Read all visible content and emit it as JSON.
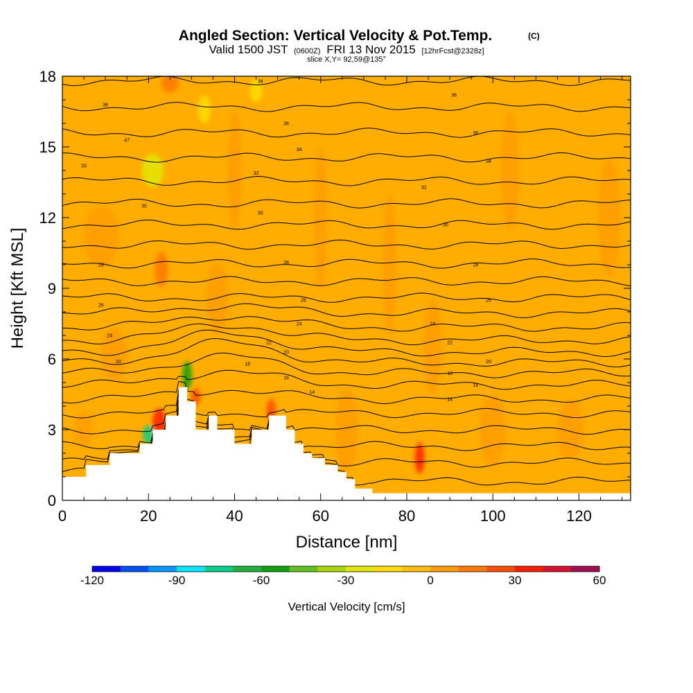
{
  "chart_data": {
    "type": "heatmap",
    "title": "Angled Section: Vertical Velocity & Pot.Temp.",
    "title_units": "(C)",
    "subtitle": {
      "valid": "Valid 1500 JST",
      "zulu": "(0600Z)",
      "date": "FRI 13 Nov 2015",
      "forecast": "[12hrFcst@2328z]"
    },
    "slice_label": "slice X,Y= 92,59@135°",
    "xlabel": "Distance [nm]",
    "ylabel": "Height [Kft MSL]",
    "xlim": [
      0,
      132
    ],
    "ylim": [
      0,
      18
    ],
    "x_ticks": [
      "0",
      "20",
      "40",
      "60",
      "80",
      "100",
      "120"
    ],
    "y_ticks": [
      "0",
      "3",
      "6",
      "9",
      "12",
      "15",
      "18"
    ],
    "colorbar": {
      "label": "Vertical Velocity [cm/s]",
      "min": -120,
      "max": 60,
      "step": 10,
      "tick_labels": [
        "-120",
        "-90",
        "-60",
        "-30",
        "0",
        "30",
        "60"
      ],
      "colors": [
        "#0000ee",
        "#0050ff",
        "#0096ff",
        "#00e8ff",
        "#00d08a",
        "#20b040",
        "#10a010",
        "#60c020",
        "#a8d800",
        "#e0e800",
        "#ffdc00",
        "#ffbe00",
        "#ff9c00",
        "#ff7800",
        "#ff4e00",
        "#ff1c00",
        "#d81030",
        "#a01050"
      ]
    },
    "background_level_color": "#ffad00",
    "terrain": {
      "color": "#ffffff",
      "x": [
        0,
        5.5,
        5.5,
        11,
        11,
        18,
        18,
        21,
        21,
        24,
        24,
        27,
        27,
        29,
        29,
        31,
        31,
        34,
        34,
        36,
        36,
        40,
        40,
        44,
        44,
        48,
        48,
        50,
        50,
        52,
        52,
        54,
        54,
        56,
        56,
        58,
        58,
        61,
        61,
        64,
        64,
        66,
        66,
        68,
        68,
        72,
        72,
        80,
        80,
        132
      ],
      "height_kft": [
        1.0,
        1.0,
        1.5,
        1.5,
        2.0,
        2.0,
        2.4,
        2.4,
        3.0,
        3.0,
        3.6,
        3.6,
        4.8,
        4.8,
        4.2,
        4.2,
        3.0,
        3.0,
        3.6,
        3.6,
        3.0,
        3.0,
        2.4,
        2.4,
        3.0,
        3.0,
        3.6,
        3.6,
        3.6,
        3.6,
        3.0,
        3.0,
        2.4,
        2.4,
        2.0,
        2.0,
        1.8,
        1.8,
        1.5,
        1.5,
        1.2,
        1.2,
        0.9,
        0.9,
        0.5,
        0.5,
        0.3,
        0.3,
        0.3,
        0.3
      ]
    },
    "velocity_features": [
      {
        "x": 22.5,
        "y": 3.2,
        "w": 3.2,
        "h": 1.4,
        "value": 35
      },
      {
        "x": 83,
        "y": 1.8,
        "w": 2.2,
        "h": 1.3,
        "value": 30
      },
      {
        "x": 48.5,
        "y": 3.8,
        "w": 2.2,
        "h": 1.0,
        "value": 25
      },
      {
        "x": 23,
        "y": 9.8,
        "w": 3,
        "h": 1.5,
        "value": 15
      },
      {
        "x": 25,
        "y": 17.7,
        "w": 4,
        "h": 0.8,
        "value": 15
      },
      {
        "x": 31,
        "y": 4.4,
        "w": 2.2,
        "h": 0.7,
        "value": 20
      },
      {
        "x": 29,
        "y": 5.3,
        "w": 2.2,
        "h": 1.2,
        "value": -60
      },
      {
        "x": 20,
        "y": 2.8,
        "w": 2.6,
        "h": 0.8,
        "value": -80
      },
      {
        "x": 21,
        "y": 14.0,
        "w": 5,
        "h": 1.4,
        "value": -25
      },
      {
        "x": 33,
        "y": 16.6,
        "w": 3,
        "h": 1.2,
        "value": -15
      },
      {
        "x": 45,
        "y": 17.4,
        "w": 3,
        "h": 1.0,
        "value": -15
      },
      {
        "x": 9,
        "y": 11.2,
        "w": 8,
        "h": 2.6,
        "value": 8
      },
      {
        "x": 12,
        "y": 6.2,
        "w": 6,
        "h": 2.2,
        "value": 8
      },
      {
        "x": 36,
        "y": 8.6,
        "w": 5,
        "h": 3.0,
        "value": 8
      },
      {
        "x": 66,
        "y": 3.0,
        "w": 5,
        "h": 3.5,
        "value": 8
      },
      {
        "x": 86,
        "y": 6.5,
        "w": 4,
        "h": 4.0,
        "value": 8
      },
      {
        "x": 100,
        "y": 3.0,
        "w": 6,
        "h": 3.0,
        "value": 8
      },
      {
        "x": 118,
        "y": 3.0,
        "w": 6,
        "h": 2.5,
        "value": 8
      },
      {
        "x": 104,
        "y": 14.0,
        "w": 4,
        "h": 5.0,
        "value": 8
      },
      {
        "x": 127,
        "y": 12.0,
        "w": 5,
        "h": 5.0,
        "value": 8
      },
      {
        "x": 60,
        "y": 12.0,
        "w": 3,
        "h": 6.0,
        "value": 8
      },
      {
        "x": 76,
        "y": 10.0,
        "w": 3,
        "h": 6.0,
        "value": 8
      },
      {
        "x": 5,
        "y": 3.0,
        "w": 4,
        "h": 1.5,
        "value": 8
      },
      {
        "x": 40,
        "y": 14.0,
        "w": 3,
        "h": 5.0,
        "value": 8
      }
    ],
    "isentrope_base_heights_kft": [
      0.8,
      1.6,
      2.3,
      3.0,
      3.7,
      4.3,
      4.9,
      5.4,
      5.85,
      6.3,
      6.8,
      7.35,
      7.95,
      8.6,
      9.3,
      10.05,
      10.85,
      11.7,
      12.6,
      13.55,
      14.55,
      15.6,
      16.7,
      17.8
    ],
    "isentrope_labels": [
      {
        "x": 58,
        "y": 4.6,
        "text": "14"
      },
      {
        "x": 90,
        "y": 4.3,
        "text": "14"
      },
      {
        "x": 52,
        "y": 5.2,
        "text": "16"
      },
      {
        "x": 96,
        "y": 4.9,
        "text": "16"
      },
      {
        "x": 43,
        "y": 5.8,
        "text": "18"
      },
      {
        "x": 90,
        "y": 5.4,
        "text": "18"
      },
      {
        "x": 13,
        "y": 5.9,
        "text": "20"
      },
      {
        "x": 52,
        "y": 6.3,
        "text": "20"
      },
      {
        "x": 99,
        "y": 5.9,
        "text": "20"
      },
      {
        "x": 48,
        "y": 6.7,
        "text": "22"
      },
      {
        "x": 90,
        "y": 6.7,
        "text": "22"
      },
      {
        "x": 11,
        "y": 7.0,
        "text": "24"
      },
      {
        "x": 55,
        "y": 7.5,
        "text": "24"
      },
      {
        "x": 86,
        "y": 7.5,
        "text": "24"
      },
      {
        "x": 9,
        "y": 8.3,
        "text": "26"
      },
      {
        "x": 56,
        "y": 8.5,
        "text": "26"
      },
      {
        "x": 99,
        "y": 8.5,
        "text": "26"
      },
      {
        "x": 9,
        "y": 10.0,
        "text": "28"
      },
      {
        "x": 52,
        "y": 10.1,
        "text": "28"
      },
      {
        "x": 96,
        "y": 10.0,
        "text": "28"
      },
      {
        "x": 19,
        "y": 12.5,
        "text": "30"
      },
      {
        "x": 46,
        "y": 12.2,
        "text": "30"
      },
      {
        "x": 89,
        "y": 11.7,
        "text": "30"
      },
      {
        "x": 45,
        "y": 13.9,
        "text": "32"
      },
      {
        "x": 84,
        "y": 13.3,
        "text": "32"
      },
      {
        "x": 5,
        "y": 14.2,
        "text": "33"
      },
      {
        "x": 55,
        "y": 14.9,
        "text": "34"
      },
      {
        "x": 99,
        "y": 14.4,
        "text": "34"
      },
      {
        "x": 15,
        "y": 15.3,
        "text": "47"
      },
      {
        "x": 52,
        "y": 16.0,
        "text": "36"
      },
      {
        "x": 96,
        "y": 15.6,
        "text": "36"
      },
      {
        "x": 10,
        "y": 16.8,
        "text": "36"
      },
      {
        "x": 46,
        "y": 17.8,
        "text": "36"
      },
      {
        "x": 91,
        "y": 17.2,
        "text": "36"
      }
    ]
  }
}
